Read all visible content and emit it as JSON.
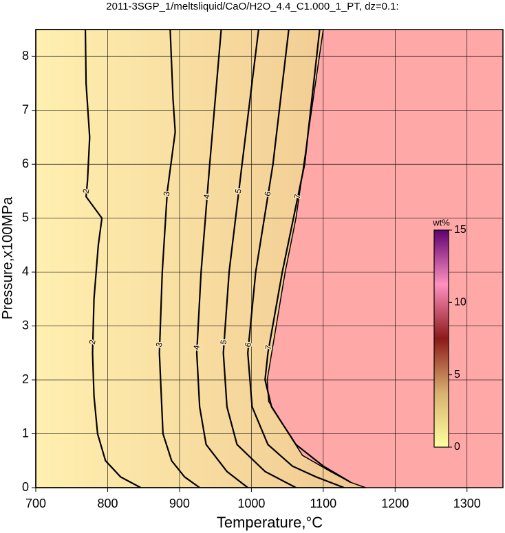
{
  "chart_data": {
    "type": "contour",
    "title": "2011-3SGP_1/meltsliquid/CaO/H2O_4.4_C1.000_1_PT, dz=0.1:",
    "x_label": "Temperature,°C",
    "y_label": "Pressure,x100MPa",
    "xlim": [
      700,
      1350
    ],
    "ylim": [
      0,
      8.5
    ],
    "xticks": [
      700,
      800,
      900,
      1000,
      1100,
      1200,
      1300
    ],
    "yticks": [
      0,
      1,
      2,
      3,
      4,
      5,
      6,
      7,
      8
    ],
    "grid": true,
    "background_color": "#ffa8a8",
    "fill_colors": [
      "#fff0b0",
      "#f0c890"
    ],
    "region_boundary": {
      "x": [
        1100,
        1062,
        1047,
        1022,
        1024,
        1052,
        1071,
        1110,
        1138,
        1159
      ],
      "y": [
        8.5,
        5,
        4,
        2,
        1.6,
        1,
        0.6,
        0.3,
        0.1,
        0
      ]
    },
    "contours": [
      {
        "level": 2,
        "x": [
          769,
          770,
          775,
          772,
          770,
          792,
          787,
          781,
          779,
          781,
          786,
          797,
          818,
          846
        ],
        "y": [
          8.5,
          7.5,
          6.5,
          5.7,
          5.4,
          5.0,
          4.5,
          3.5,
          2.5,
          1.7,
          1.0,
          0.5,
          0.2,
          0
        ]
      },
      {
        "level": 3,
        "x": [
          887,
          891,
          894,
          883,
          876,
          872,
          877,
          889,
          907,
          928
        ],
        "y": [
          8.5,
          7.2,
          6.6,
          5.5,
          4,
          2.5,
          1,
          0.5,
          0.2,
          0
        ]
      },
      {
        "level": 4,
        "x": [
          958,
          942,
          930,
          924,
          928,
          937,
          966,
          995
        ],
        "y": [
          8.5,
          6,
          4,
          2.5,
          1.5,
          0.8,
          0.3,
          0
        ]
      },
      {
        "level": 5,
        "x": [
          1010,
          987,
          969,
          961,
          966,
          980,
          1019,
          1062
        ],
        "y": [
          8.5,
          6,
          4,
          2.5,
          1.5,
          0.8,
          0.3,
          0
        ]
      },
      {
        "level": 6,
        "x": [
          1052,
          1030,
          1006,
          995,
          1001,
          1023,
          1057,
          1090,
          1129
        ],
        "y": [
          8.5,
          6,
          4,
          2.5,
          1.5,
          0.8,
          0.4,
          0.2,
          0
        ]
      },
      {
        "level": 7,
        "x": [
          1095,
          1074,
          1043,
          1023,
          1019,
          1028,
          1062,
          1100,
          1138
        ],
        "y": [
          8.5,
          6,
          4,
          2.5,
          2,
          1.5,
          0.8,
          0.4,
          0.1
        ]
      }
    ],
    "colorbar": {
      "label": "wt%",
      "lim": [
        0,
        15
      ],
      "ticks": [
        0,
        5,
        10,
        15
      ],
      "colors": [
        "#ffffa0",
        "#d8b070",
        "#8b1a1a",
        "#ff90c0",
        "#600070"
      ]
    }
  }
}
